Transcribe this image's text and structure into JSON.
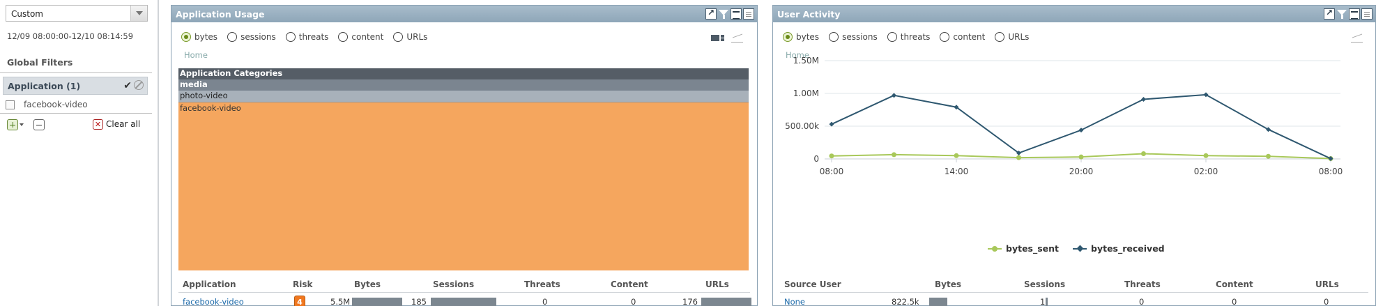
{
  "sidebar": {
    "time_select": "Custom",
    "time_range": "12/09 08:00:00-12/10 08:14:59",
    "global_filters_title": "Global Filters",
    "filter_group_label": "Application (1)",
    "filter_items": [
      {
        "label": "facebook-video",
        "checked": false
      }
    ],
    "clear_all_label": "Clear all"
  },
  "app_panel": {
    "title": "Application Usage",
    "radio_options": [
      "bytes",
      "sessions",
      "threats",
      "content",
      "URLs"
    ],
    "selected": "bytes",
    "breadcrumb": "Home",
    "treemap": {
      "levels": [
        "Application Categories",
        "media",
        "photo-video"
      ],
      "leaf": "facebook-video",
      "leaf_color": "#f5a65e"
    },
    "table": {
      "columns": [
        "Application",
        "Risk",
        "Bytes",
        "Sessions",
        "Threats",
        "Content",
        "URLs"
      ],
      "rows": [
        {
          "application": "facebook-video",
          "risk": "4",
          "bytes": "5.5M",
          "sessions": "185",
          "threats": "0",
          "content": "0",
          "urls": "176"
        }
      ]
    }
  },
  "user_panel": {
    "title": "User Activity",
    "radio_options": [
      "bytes",
      "sessions",
      "threats",
      "content",
      "URLs"
    ],
    "selected": "bytes",
    "breadcrumb": "Home",
    "table": {
      "columns": [
        "Source User",
        "Bytes",
        "Sessions",
        "Threats",
        "Content",
        "URLs"
      ],
      "rows": [
        {
          "user": "None",
          "bytes": "822.5k",
          "sessions": "1",
          "threats": "0",
          "content": "0",
          "urls": "0"
        }
      ]
    }
  },
  "chart_data": {
    "type": "line",
    "x": [
      "08:00",
      "11:00",
      "14:00",
      "17:00",
      "20:00",
      "23:00",
      "02:00",
      "05:00",
      "08:00"
    ],
    "x_tick_labels": [
      "08:00",
      "14:00",
      "20:00",
      "02:00",
      "08:00"
    ],
    "y_tick_labels": [
      "0",
      "500.00k",
      "1.00M",
      "1.50M"
    ],
    "ylim": [
      0,
      1500000
    ],
    "series": [
      {
        "name": "bytes_sent",
        "color": "#a8c85a",
        "values": [
          45000,
          65000,
          50000,
          20000,
          30000,
          80000,
          50000,
          40000,
          5000
        ]
      },
      {
        "name": "bytes_received",
        "color": "#2f5870",
        "values": [
          530000,
          970000,
          790000,
          90000,
          440000,
          910000,
          980000,
          450000,
          5000
        ]
      }
    ],
    "grid": true,
    "legend_position": "bottom"
  },
  "colors": {
    "accent": "#8ea6b8",
    "risk": "#f07820",
    "bar": "#7c8790"
  }
}
